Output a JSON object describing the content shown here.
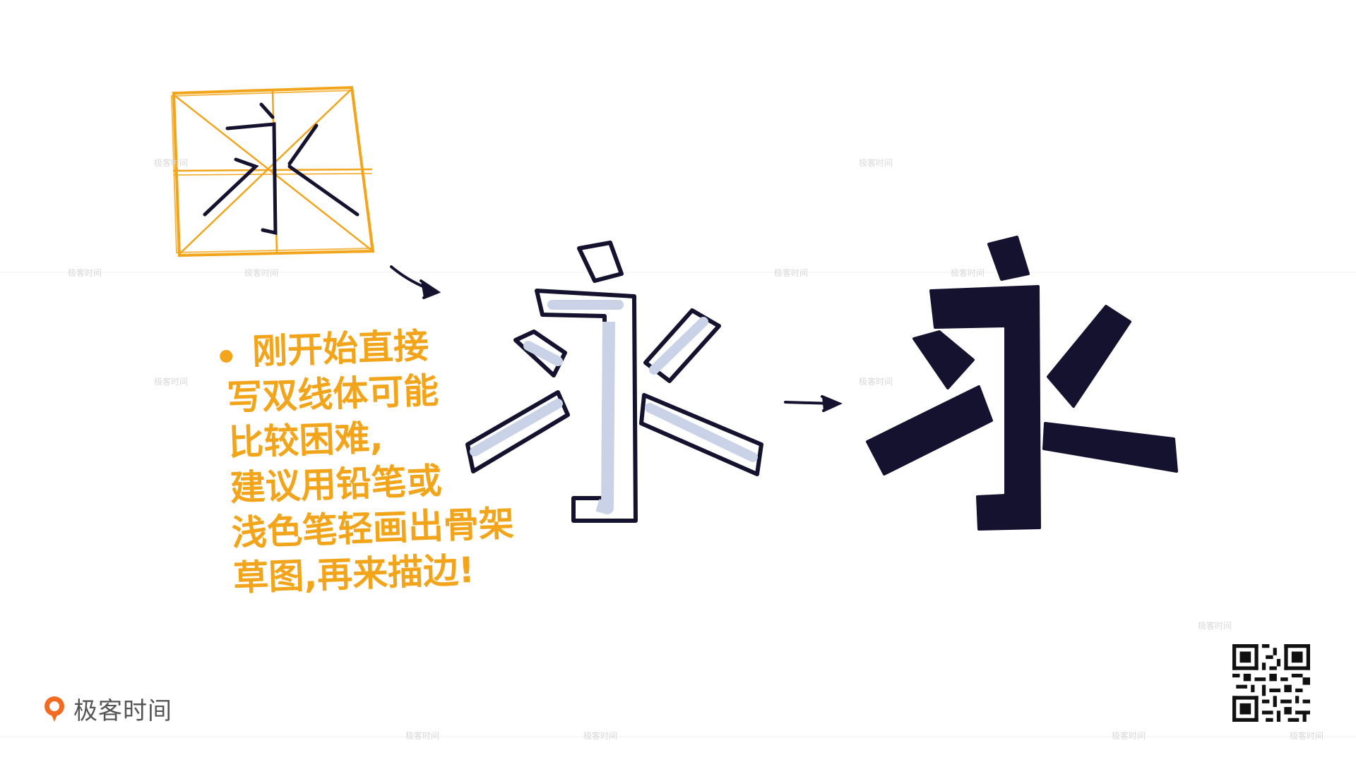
{
  "note": {
    "lines": [
      "刚开始直接",
      "写双线体可能",
      "比较困难,",
      "建议用铅笔或",
      "浅色笔轻画出骨架",
      "草图,再来描边!"
    ]
  },
  "characters": {
    "grid_character": "永",
    "outline_character": "永",
    "filled_character": "永"
  },
  "logo": {
    "text": "极客时间",
    "icon": "geektime-logo-icon"
  },
  "watermark": {
    "text": "极客时间"
  },
  "colors": {
    "orange": "#f2a51a",
    "ink": "#14122e",
    "outline_fill": "#c9d2e6",
    "background": "#ffffff"
  },
  "qr_code": {
    "icon": "qr-code-icon"
  }
}
